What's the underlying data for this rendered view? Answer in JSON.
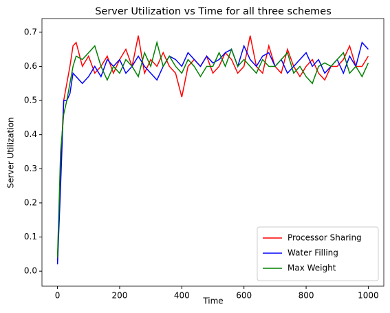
{
  "chart_data": {
    "type": "line",
    "title": "Server Utilization vs Time for all three schemes",
    "xlabel": "Time",
    "ylabel": "Server Utilization",
    "x": [
      0,
      10,
      20,
      30,
      40,
      50,
      60,
      80,
      100,
      120,
      140,
      160,
      180,
      200,
      220,
      240,
      260,
      280,
      300,
      320,
      340,
      360,
      380,
      400,
      420,
      440,
      460,
      480,
      500,
      520,
      540,
      560,
      580,
      600,
      620,
      640,
      660,
      680,
      700,
      720,
      740,
      760,
      780,
      800,
      820,
      840,
      860,
      880,
      900,
      920,
      940,
      960,
      980,
      1000
    ],
    "series": [
      {
        "name": "Processor Sharing",
        "color": "#ff0000",
        "values": [
          0.03,
          0.3,
          0.5,
          0.55,
          0.6,
          0.66,
          0.67,
          0.6,
          0.63,
          0.58,
          0.6,
          0.63,
          0.58,
          0.62,
          0.65,
          0.6,
          0.69,
          0.58,
          0.62,
          0.6,
          0.64,
          0.6,
          0.58,
          0.51,
          0.6,
          0.62,
          0.6,
          0.63,
          0.58,
          0.6,
          0.64,
          0.62,
          0.58,
          0.6,
          0.69,
          0.6,
          0.58,
          0.66,
          0.6,
          0.58,
          0.65,
          0.6,
          0.57,
          0.6,
          0.62,
          0.58,
          0.56,
          0.6,
          0.6,
          0.62,
          0.66,
          0.6,
          0.6,
          0.63
        ]
      },
      {
        "name": "Water Filling",
        "color": "#0000ff",
        "values": [
          0.02,
          0.25,
          0.5,
          0.5,
          0.52,
          0.58,
          0.57,
          0.55,
          0.57,
          0.6,
          0.57,
          0.62,
          0.6,
          0.62,
          0.58,
          0.6,
          0.63,
          0.6,
          0.58,
          0.56,
          0.6,
          0.63,
          0.62,
          0.6,
          0.64,
          0.62,
          0.6,
          0.63,
          0.61,
          0.62,
          0.64,
          0.65,
          0.6,
          0.66,
          0.62,
          0.6,
          0.63,
          0.64,
          0.6,
          0.62,
          0.58,
          0.6,
          0.62,
          0.64,
          0.6,
          0.62,
          0.58,
          0.6,
          0.62,
          0.58,
          0.63,
          0.6,
          0.67,
          0.65
        ]
      },
      {
        "name": "Max Weight",
        "color": "#008000",
        "values": [
          0.04,
          0.35,
          0.46,
          0.5,
          0.55,
          0.6,
          0.63,
          0.62,
          0.64,
          0.66,
          0.6,
          0.56,
          0.6,
          0.58,
          0.62,
          0.6,
          0.57,
          0.64,
          0.6,
          0.67,
          0.6,
          0.63,
          0.6,
          0.58,
          0.62,
          0.6,
          0.57,
          0.6,
          0.6,
          0.64,
          0.6,
          0.65,
          0.6,
          0.62,
          0.6,
          0.58,
          0.62,
          0.6,
          0.6,
          0.62,
          0.64,
          0.58,
          0.6,
          0.57,
          0.55,
          0.6,
          0.61,
          0.6,
          0.62,
          0.64,
          0.58,
          0.6,
          0.57,
          0.61
        ]
      }
    ],
    "xlim": [
      -50,
      1050
    ],
    "ylim": [
      -0.044,
      0.74
    ],
    "xticks": [
      0,
      200,
      400,
      600,
      800,
      1000
    ],
    "yticks": [
      {
        "value": 0,
        "label": "0.0"
      },
      0.1,
      0.2,
      0.3,
      0.4,
      0.5,
      0.6,
      0.7
    ],
    "legend": "lower right"
  }
}
